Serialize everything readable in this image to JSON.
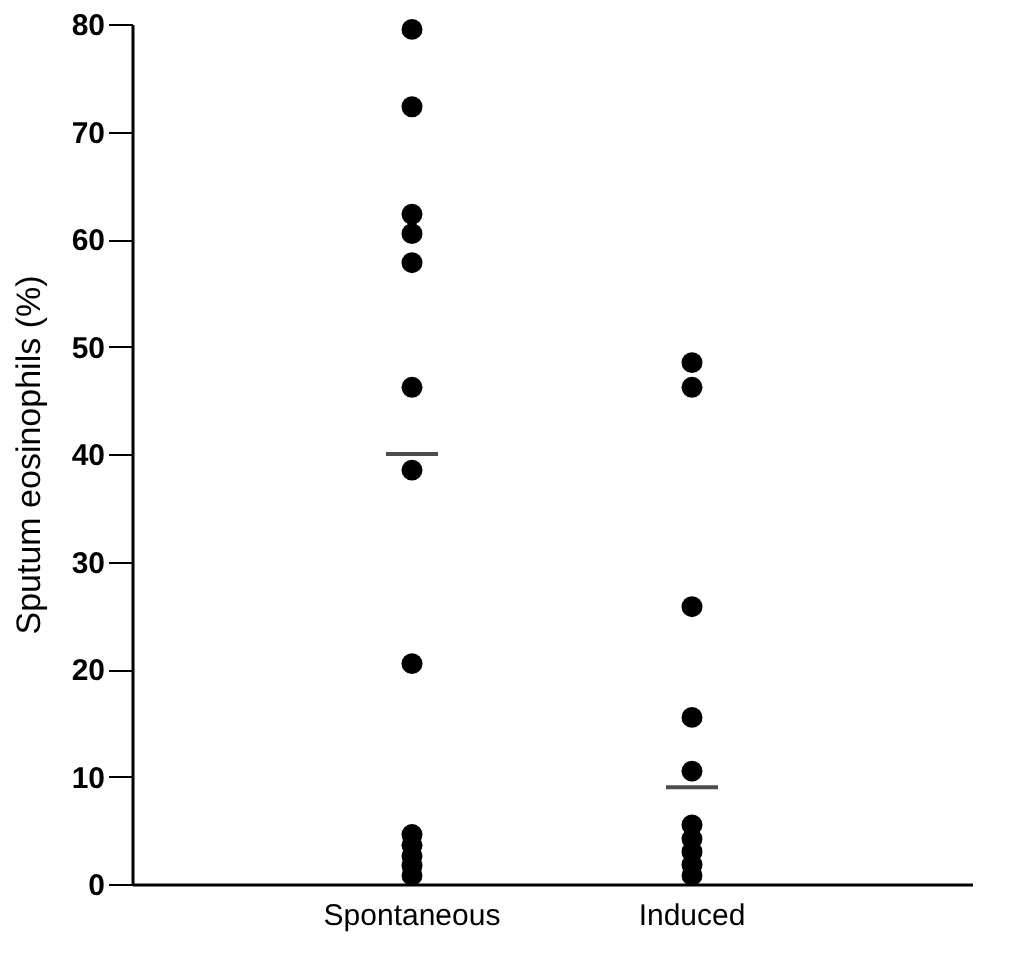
{
  "chart_data": {
    "type": "scatter",
    "ylabel": "Sputum eosinophils (%)",
    "categories": [
      "Spontaneous",
      "Induced"
    ],
    "ylim": [
      0,
      80
    ],
    "yticks": [
      0,
      10,
      20,
      30,
      40,
      50,
      60,
      70,
      80
    ],
    "grid": false,
    "series": [
      {
        "marker": "circle",
        "color": "#000000",
        "x": [
          "Spontaneous",
          "Spontaneous",
          "Spontaneous",
          "Spontaneous",
          "Spontaneous",
          "Spontaneous",
          "Spontaneous",
          "Spontaneous",
          "Spontaneous",
          "Spontaneous",
          "Spontaneous",
          "Spontaneous",
          "Spontaneous",
          "Induced",
          "Induced",
          "Induced",
          "Induced",
          "Induced",
          "Induced",
          "Induced",
          "Induced",
          "Induced",
          "Induced"
        ],
        "values": [
          79.5,
          72.3,
          62.3,
          60.5,
          57.8,
          46.2,
          38.5,
          20.5,
          4.6,
          3.6,
          2.6,
          1.7,
          0.8,
          48.5,
          46.2,
          25.8,
          15.5,
          10.5,
          5.5,
          4.2,
          3,
          1.8,
          0.8
        ]
      },
      {
        "type": "box",
        "color": "#000000",
        "boxes": [
          {
            "low": 40,
            "q1": 40,
            "median": 40,
            "q3": 40,
            "high": 40
          },
          {
            "low": 9,
            "q1": 9,
            "median": 9,
            "q3": 9,
            "high": 9
          }
        ]
      }
    ]
  }
}
